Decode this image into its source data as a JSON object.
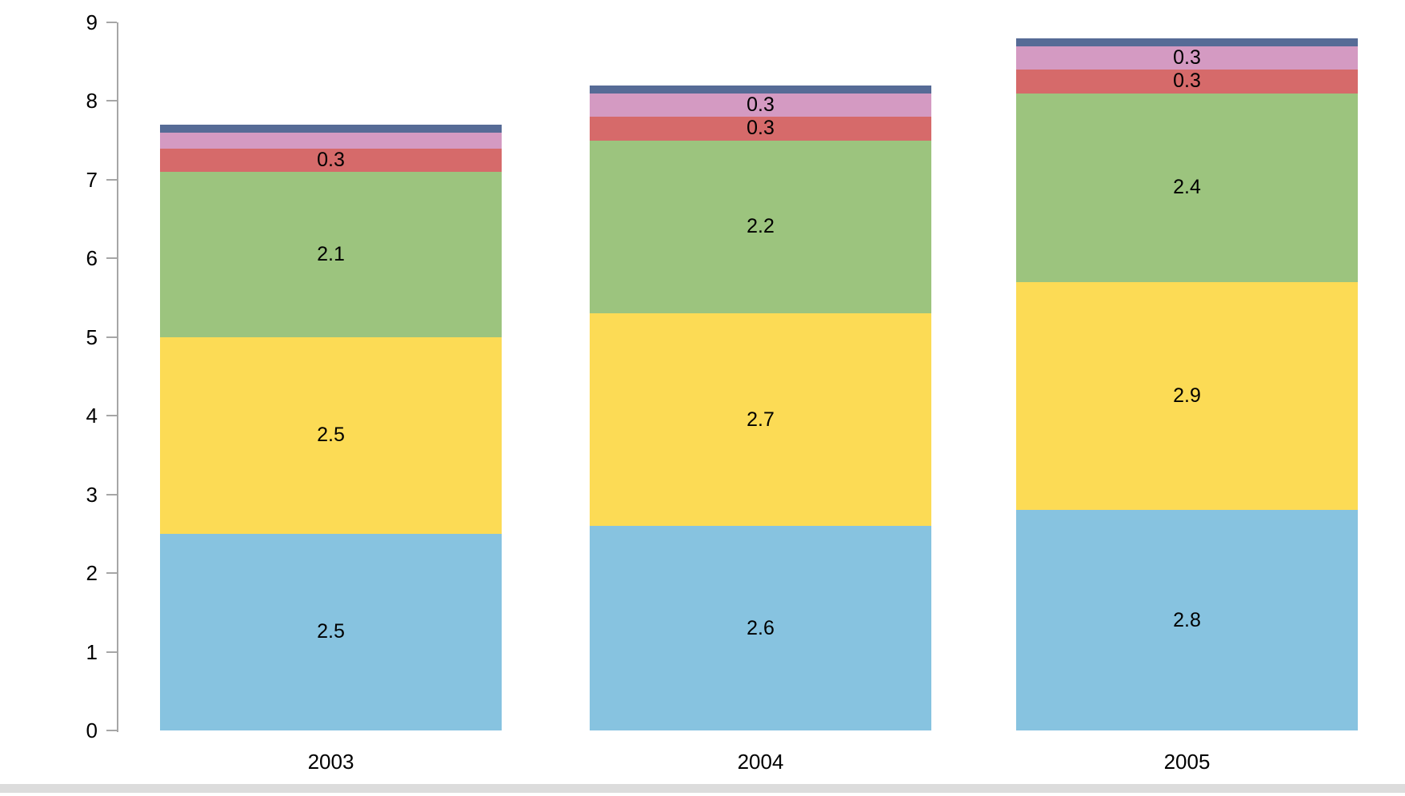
{
  "chart_data": {
    "type": "bar",
    "stacked": true,
    "title": "",
    "xlabel": "",
    "ylabel": "",
    "categories": [
      "2003",
      "2004",
      "2005"
    ],
    "series": [
      {
        "name": "blue",
        "color": "#87c3e0",
        "values": [
          2.5,
          2.6,
          2.8
        ],
        "labels": [
          "2.5",
          "2.6",
          "2.8"
        ]
      },
      {
        "name": "yellow",
        "color": "#fcdb55",
        "values": [
          2.5,
          2.7,
          2.9
        ],
        "labels": [
          "2.5",
          "2.7",
          "2.9"
        ]
      },
      {
        "name": "green",
        "color": "#9cc47e",
        "values": [
          2.1,
          2.2,
          2.4
        ],
        "labels": [
          "2.1",
          "2.2",
          "2.4"
        ]
      },
      {
        "name": "red",
        "color": "#d66a6a",
        "values": [
          0.3,
          0.3,
          0.3
        ],
        "labels": [
          "0.3",
          "0.3",
          "0.3"
        ]
      },
      {
        "name": "pink",
        "color": "#d49ac2",
        "values": [
          0.2,
          0.3,
          0.3
        ],
        "labels": [
          "",
          "0.3",
          "0.3"
        ]
      },
      {
        "name": "navy",
        "color": "#566b96",
        "values": [
          0.1,
          0.1,
          0.1
        ],
        "labels": [
          "",
          "",
          ""
        ]
      }
    ],
    "totals": [
      7.7,
      8.2,
      8.8
    ],
    "y_axis": {
      "min": 0,
      "max": 9,
      "tick_step": 1,
      "ticks": [
        "0",
        "1",
        "2",
        "3",
        "4",
        "5",
        "6",
        "7",
        "8",
        "9"
      ]
    },
    "legend": "none",
    "grid": "off"
  },
  "colors": {
    "axis": "#a6a6a6",
    "text": "#000000",
    "background": "#ffffff",
    "scrollbar_track": "#dcdcdc"
  }
}
